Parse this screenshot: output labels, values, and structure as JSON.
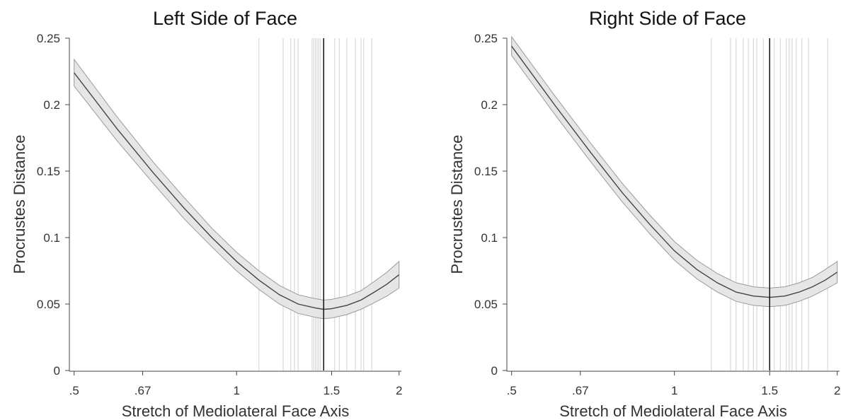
{
  "chart_data": [
    {
      "type": "line",
      "title": "Left Side of Face",
      "xlabel": "Stretch of Mediolateral Face Axis",
      "ylabel": "Procrustes Distance",
      "x_scale": "log",
      "xlim": [
        0.49,
        2.02
      ],
      "ylim": [
        0,
        0.25
      ],
      "xticks": [
        {
          "value": 0.5,
          "label": ".5"
        },
        {
          "value": 0.67,
          "label": ".67"
        },
        {
          "value": 1,
          "label": "1"
        },
        {
          "value": 1.5,
          "label": "1.5"
        },
        {
          "value": 2,
          "label": "2"
        }
      ],
      "yticks": [
        {
          "value": 0,
          "label": "0"
        },
        {
          "value": 0.05,
          "label": "0.05"
        },
        {
          "value": 0.1,
          "label": "0.1"
        },
        {
          "value": 0.15,
          "label": "0.15"
        },
        {
          "value": 0.2,
          "label": "0.2"
        },
        {
          "value": 0.25,
          "label": "0.25"
        }
      ],
      "grid": false,
      "fit_curve": {
        "x": [
          0.5,
          0.6,
          0.7,
          0.8,
          0.9,
          1.0,
          1.1,
          1.2,
          1.3,
          1.4,
          1.45,
          1.5,
          1.6,
          1.7,
          1.8,
          1.9,
          2.0
        ],
        "y": [
          0.224,
          0.182,
          0.149,
          0.122,
          0.1,
          0.082,
          0.068,
          0.057,
          0.05,
          0.047,
          0.046,
          0.0465,
          0.049,
          0.053,
          0.059,
          0.065,
          0.072
        ],
        "ci_low": [
          0.214,
          0.173,
          0.141,
          0.114,
          0.093,
          0.075,
          0.061,
          0.05,
          0.043,
          0.04,
          0.039,
          0.0395,
          0.042,
          0.046,
          0.051,
          0.056,
          0.062
        ],
        "ci_high": [
          0.234,
          0.191,
          0.157,
          0.13,
          0.107,
          0.089,
          0.075,
          0.064,
          0.057,
          0.054,
          0.053,
          0.0535,
          0.056,
          0.06,
          0.067,
          0.074,
          0.082
        ]
      },
      "individual_minima_x": [
        1.1,
        1.22,
        1.26,
        1.28,
        1.3,
        1.38,
        1.39,
        1.4,
        1.41,
        1.42,
        1.43,
        1.52,
        1.55,
        1.6,
        1.66,
        1.7,
        1.72,
        1.78
      ],
      "minimum_x": 1.45
    },
    {
      "type": "line",
      "title": "Right Side of Face",
      "xlabel": "Stretch of Mediolateral Face Axis",
      "ylabel": "Procrustes Distance",
      "x_scale": "log",
      "xlim": [
        0.49,
        2.02
      ],
      "ylim": [
        0,
        0.25
      ],
      "xticks": [
        {
          "value": 0.5,
          "label": ".5"
        },
        {
          "value": 0.67,
          "label": ".67"
        },
        {
          "value": 1,
          "label": "1"
        },
        {
          "value": 1.5,
          "label": "1.5"
        },
        {
          "value": 2,
          "label": "2"
        }
      ],
      "yticks": [
        {
          "value": 0,
          "label": "0"
        },
        {
          "value": 0.05,
          "label": "0.05"
        },
        {
          "value": 0.1,
          "label": "0.1"
        },
        {
          "value": 0.15,
          "label": "0.15"
        },
        {
          "value": 0.2,
          "label": "0.2"
        },
        {
          "value": 0.25,
          "label": "0.25"
        }
      ],
      "grid": false,
      "fit_curve": {
        "x": [
          0.5,
          0.6,
          0.7,
          0.8,
          0.9,
          1.0,
          1.1,
          1.2,
          1.3,
          1.4,
          1.5,
          1.6,
          1.7,
          1.8,
          1.9,
          2.0
        ],
        "y": [
          0.244,
          0.2,
          0.164,
          0.134,
          0.11,
          0.09,
          0.076,
          0.066,
          0.059,
          0.056,
          0.055,
          0.056,
          0.059,
          0.063,
          0.068,
          0.074
        ],
        "ci_low": [
          0.237,
          0.193,
          0.157,
          0.127,
          0.103,
          0.083,
          0.069,
          0.059,
          0.052,
          0.049,
          0.048,
          0.049,
          0.052,
          0.056,
          0.061,
          0.066
        ],
        "ci_high": [
          0.251,
          0.207,
          0.171,
          0.141,
          0.117,
          0.097,
          0.083,
          0.073,
          0.066,
          0.063,
          0.062,
          0.063,
          0.066,
          0.07,
          0.076,
          0.082
        ]
      },
      "individual_minima_x": [
        1.17,
        1.27,
        1.3,
        1.34,
        1.37,
        1.4,
        1.42,
        1.46,
        1.53,
        1.57,
        1.61,
        1.63,
        1.65,
        1.68,
        1.72,
        1.77,
        1.92
      ],
      "minimum_x": 1.5
    }
  ]
}
